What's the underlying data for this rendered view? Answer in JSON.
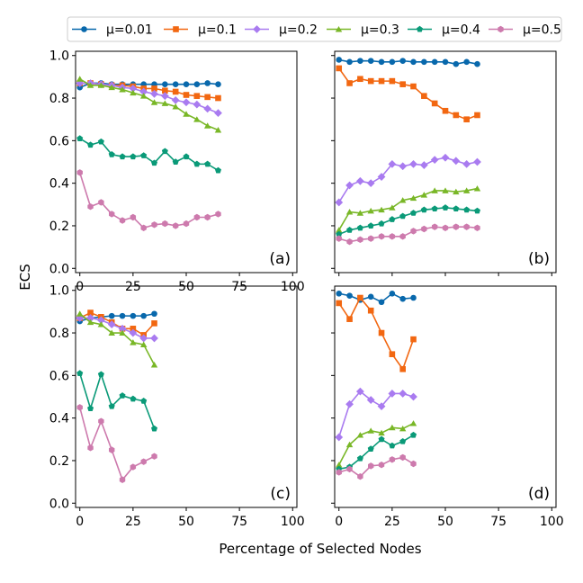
{
  "figure": {
    "ylabel": "ECS",
    "xlabel": "Percentage of Selected Nodes"
  },
  "legend": [
    {
      "name": "μ=0.01",
      "color": "#0868ac",
      "marker": "circle"
    },
    {
      "name": "μ=0.1",
      "color": "#f26711",
      "marker": "square"
    },
    {
      "name": "μ=0.2",
      "color": "#a97bf0",
      "marker": "diamond"
    },
    {
      "name": "μ=0.3",
      "color": "#79b727",
      "marker": "triangle"
    },
    {
      "name": "μ=0.4",
      "color": "#0a9a78",
      "marker": "pentagon"
    },
    {
      "name": "μ=0.5",
      "color": "#cd7aad",
      "marker": "hexagon"
    }
  ],
  "chart_data": [
    {
      "type": "line",
      "panel_label": "(a)",
      "xlim": [
        -2,
        102
      ],
      "ylim": [
        -0.02,
        1.02
      ],
      "xticks": [
        "0",
        "25",
        "50",
        "75",
        "100"
      ],
      "yticks": [
        "0.0",
        "0.2",
        "0.4",
        "0.6",
        "0.8",
        "1.0"
      ],
      "x": [
        0,
        5,
        10,
        15,
        20,
        25,
        30,
        35,
        40,
        45,
        50,
        55,
        60,
        65
      ],
      "series": [
        {
          "name": "μ=0.01",
          "values": [
            0.85,
            0.87,
            0.87,
            0.865,
            0.865,
            0.865,
            0.865,
            0.865,
            0.865,
            0.865,
            0.865,
            0.865,
            0.87,
            0.865
          ]
        },
        {
          "name": "μ=0.1",
          "values": [
            0.87,
            0.87,
            0.865,
            0.86,
            0.86,
            0.855,
            0.845,
            0.845,
            0.835,
            0.83,
            0.815,
            0.81,
            0.805,
            0.8
          ]
        },
        {
          "name": "μ=0.2",
          "values": [
            0.87,
            0.87,
            0.865,
            0.86,
            0.85,
            0.845,
            0.83,
            0.82,
            0.81,
            0.79,
            0.78,
            0.77,
            0.75,
            0.73
          ]
        },
        {
          "name": "μ=0.3",
          "values": [
            0.89,
            0.86,
            0.86,
            0.85,
            0.84,
            0.825,
            0.81,
            0.78,
            0.775,
            0.76,
            0.725,
            0.7,
            0.67,
            0.65
          ]
        },
        {
          "name": "μ=0.4",
          "values": [
            0.61,
            0.58,
            0.595,
            0.535,
            0.525,
            0.525,
            0.53,
            0.495,
            0.55,
            0.5,
            0.525,
            0.49,
            0.49,
            0.46
          ]
        },
        {
          "name": "μ=0.5",
          "values": [
            0.45,
            0.29,
            0.31,
            0.255,
            0.225,
            0.24,
            0.19,
            0.205,
            0.21,
            0.2,
            0.21,
            0.24,
            0.24,
            0.255
          ]
        }
      ]
    },
    {
      "type": "line",
      "panel_label": "(b)",
      "xlim": [
        -2,
        102
      ],
      "ylim": [
        -0.02,
        1.02
      ],
      "xticks": [],
      "yticks": [],
      "x": [
        0,
        5,
        10,
        15,
        20,
        25,
        30,
        35,
        40,
        45,
        50,
        55,
        60,
        65
      ],
      "series": [
        {
          "name": "μ=0.01",
          "values": [
            0.98,
            0.97,
            0.975,
            0.975,
            0.97,
            0.97,
            0.975,
            0.97,
            0.97,
            0.97,
            0.97,
            0.96,
            0.97,
            0.96
          ]
        },
        {
          "name": "μ=0.1",
          "values": [
            0.94,
            0.87,
            0.89,
            0.88,
            0.88,
            0.88,
            0.865,
            0.855,
            0.81,
            0.775,
            0.74,
            0.72,
            0.7,
            0.72
          ]
        },
        {
          "name": "μ=0.2",
          "values": [
            0.31,
            0.39,
            0.41,
            0.4,
            0.43,
            0.49,
            0.48,
            0.49,
            0.485,
            0.51,
            0.52,
            0.505,
            0.49,
            0.5
          ]
        },
        {
          "name": "μ=0.3",
          "values": [
            0.18,
            0.265,
            0.26,
            0.27,
            0.275,
            0.285,
            0.32,
            0.33,
            0.345,
            0.365,
            0.365,
            0.36,
            0.365,
            0.375
          ]
        },
        {
          "name": "μ=0.4",
          "values": [
            0.16,
            0.18,
            0.19,
            0.2,
            0.21,
            0.23,
            0.245,
            0.26,
            0.275,
            0.28,
            0.285,
            0.28,
            0.275,
            0.27
          ]
        },
        {
          "name": "μ=0.5",
          "values": [
            0.14,
            0.125,
            0.135,
            0.14,
            0.15,
            0.15,
            0.15,
            0.175,
            0.185,
            0.195,
            0.19,
            0.195,
            0.195,
            0.19
          ]
        }
      ]
    },
    {
      "type": "line",
      "panel_label": "(c)",
      "xlim": [
        -2,
        102
      ],
      "ylim": [
        -0.02,
        1.02
      ],
      "xticks": [
        "0",
        "25",
        "50",
        "75",
        "100"
      ],
      "yticks": [
        "0.0",
        "0.2",
        "0.4",
        "0.6",
        "0.8",
        "1.0"
      ],
      "x": [
        0,
        5,
        10,
        15,
        20,
        25,
        30,
        35
      ],
      "series": [
        {
          "name": "μ=0.01",
          "values": [
            0.855,
            0.87,
            0.875,
            0.88,
            0.88,
            0.88,
            0.88,
            0.89
          ]
        },
        {
          "name": "μ=0.1",
          "values": [
            0.87,
            0.895,
            0.875,
            0.85,
            0.82,
            0.82,
            0.79,
            0.845
          ]
        },
        {
          "name": "μ=0.2",
          "values": [
            0.87,
            0.87,
            0.86,
            0.84,
            0.82,
            0.8,
            0.775,
            0.775
          ]
        },
        {
          "name": "μ=0.3",
          "values": [
            0.89,
            0.85,
            0.84,
            0.8,
            0.8,
            0.755,
            0.745,
            0.65
          ]
        },
        {
          "name": "μ=0.4",
          "values": [
            0.61,
            0.445,
            0.605,
            0.455,
            0.505,
            0.49,
            0.48,
            0.35
          ]
        },
        {
          "name": "μ=0.5",
          "values": [
            0.45,
            0.26,
            0.385,
            0.25,
            0.11,
            0.17,
            0.195,
            0.22
          ]
        }
      ]
    },
    {
      "type": "line",
      "panel_label": "(d)",
      "xlim": [
        -2,
        102
      ],
      "ylim": [
        -0.02,
        1.02
      ],
      "xticks": [
        "0",
        "25",
        "50",
        "75",
        "100"
      ],
      "yticks": [],
      "x": [
        0,
        5,
        10,
        15,
        20,
        25,
        30,
        35
      ],
      "series": [
        {
          "name": "μ=0.01",
          "values": [
            0.985,
            0.975,
            0.955,
            0.97,
            0.945,
            0.985,
            0.96,
            0.965
          ]
        },
        {
          "name": "μ=0.1",
          "values": [
            0.94,
            0.865,
            0.965,
            0.905,
            0.8,
            0.7,
            0.63,
            0.77
          ]
        },
        {
          "name": "μ=0.2",
          "values": [
            0.31,
            0.465,
            0.525,
            0.485,
            0.455,
            0.515,
            0.515,
            0.5
          ]
        },
        {
          "name": "μ=0.3",
          "values": [
            0.18,
            0.275,
            0.32,
            0.34,
            0.33,
            0.355,
            0.35,
            0.375
          ]
        },
        {
          "name": "μ=0.4",
          "values": [
            0.16,
            0.17,
            0.21,
            0.255,
            0.3,
            0.27,
            0.29,
            0.32
          ]
        },
        {
          "name": "μ=0.5",
          "values": [
            0.145,
            0.16,
            0.125,
            0.175,
            0.18,
            0.205,
            0.215,
            0.185
          ]
        }
      ]
    }
  ]
}
